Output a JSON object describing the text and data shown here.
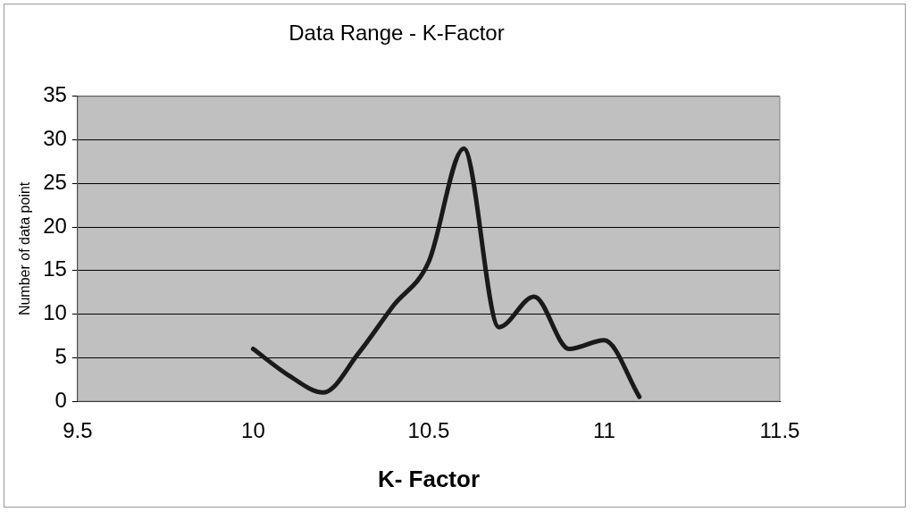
{
  "chart_data": {
    "type": "line",
    "title": "Data Range - K-Factor",
    "xlabel": "K- Factor",
    "ylabel": "Number of data point",
    "x": [
      10,
      10.1,
      10.2,
      10.3,
      10.4,
      10.5,
      10.6,
      10.7,
      10.8,
      10.9,
      11,
      11.1
    ],
    "series": [
      {
        "color": "#1a1a1a",
        "values": [
          6,
          3,
          1,
          5.5,
          11,
          16,
          29,
          8.5,
          12,
          6,
          7,
          0.5
        ]
      }
    ],
    "xlim": [
      9.5,
      11.5
    ],
    "xticks": [
      9.5,
      10,
      10.5,
      11,
      11.5
    ],
    "ylim": [
      0,
      35
    ],
    "yticks": [
      0,
      5,
      10,
      15,
      20,
      25,
      30,
      35
    ],
    "grid": "y",
    "legend": false,
    "marker": "none",
    "line_style": "solid"
  }
}
